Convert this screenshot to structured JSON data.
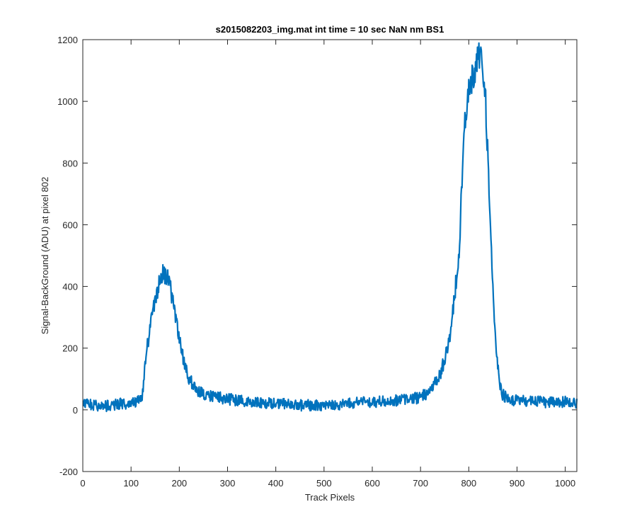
{
  "chart_data": {
    "type": "line",
    "title": "s2015082203_img.mat int time = 10 sec  NaN nm BS1",
    "xlabel": "Track Pixels",
    "ylabel": "Signal-BackGround (ADU) at pixel 802",
    "xlim": [
      0,
      1024
    ],
    "ylim": [
      -200,
      1200
    ],
    "xticks": [
      0,
      100,
      200,
      300,
      400,
      500,
      600,
      700,
      800,
      900,
      1000
    ],
    "yticks": [
      -200,
      0,
      200,
      400,
      600,
      800,
      1000,
      1200
    ],
    "grid": false,
    "line_color": "#0072BD",
    "series": [
      {
        "x": [
          0,
          20,
          40,
          60,
          80,
          100,
          110,
          120,
          125,
          130,
          140,
          150,
          160,
          165,
          170,
          175,
          180,
          190,
          200,
          210,
          220,
          230,
          240,
          260,
          280,
          300,
          350,
          400,
          450,
          500,
          550,
          600,
          650,
          700,
          720,
          740,
          760,
          770,
          780,
          785,
          790,
          795,
          800,
          805,
          810,
          815,
          820,
          825,
          830,
          835,
          840,
          845,
          850,
          855,
          860,
          865,
          870,
          880,
          900,
          950,
          1000,
          1024
        ],
        "y": [
          20,
          15,
          10,
          15,
          20,
          20,
          25,
          35,
          60,
          170,
          270,
          360,
          420,
          445,
          440,
          430,
          410,
          320,
          230,
          150,
          100,
          80,
          60,
          45,
          40,
          35,
          25,
          20,
          15,
          15,
          20,
          25,
          30,
          40,
          60,
          110,
          220,
          360,
          520,
          700,
          880,
          980,
          1030,
          1060,
          1080,
          1120,
          1160,
          1140,
          1100,
          1000,
          800,
          600,
          400,
          250,
          140,
          80,
          50,
          35,
          30,
          25,
          25,
          25
        ]
      }
    ]
  }
}
